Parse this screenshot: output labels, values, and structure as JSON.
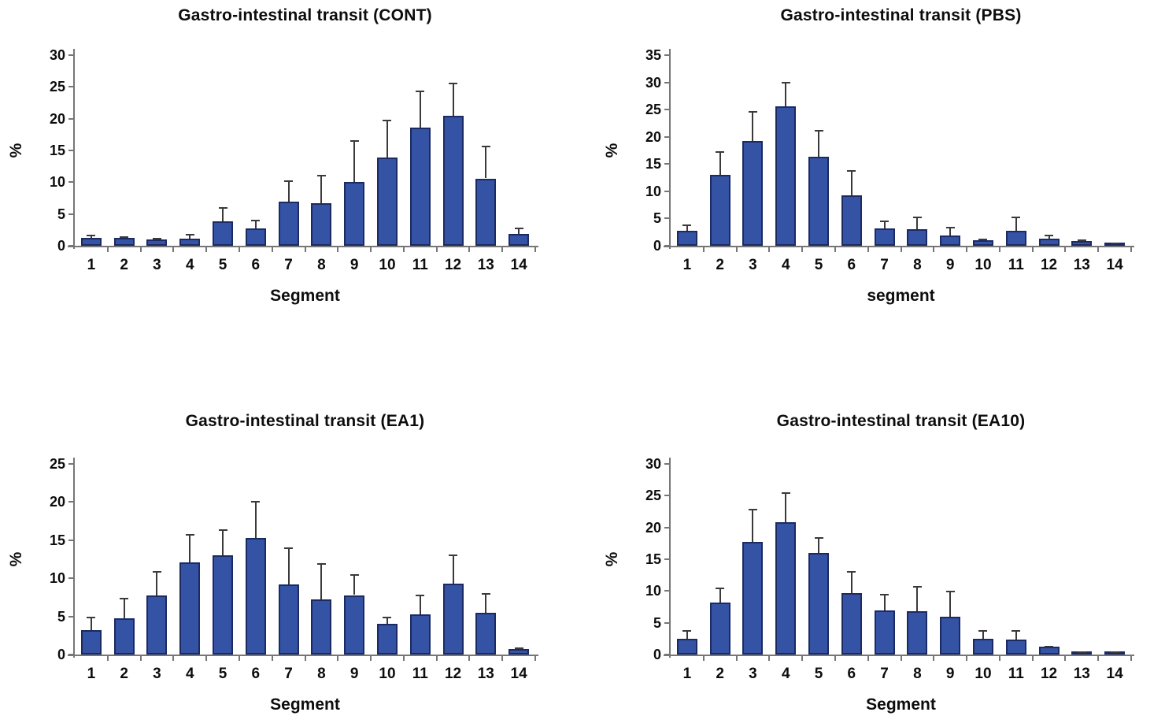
{
  "figure": {
    "background": "#ffffff",
    "layout": "2x2-grid-of-bar-charts"
  },
  "colors": {
    "bar_fill": "#3453a5",
    "bar_border": "#1c2a63",
    "axis": "#767676",
    "error_bar": "#3a3a3a",
    "text": "#0d0d0d"
  },
  "chart_data": [
    {
      "id": "cont",
      "type": "bar",
      "title": "Gastro-intestinal transit (CONT)",
      "xlabel": "Segment",
      "ylabel": "%",
      "ylim": [
        0,
        30
      ],
      "yticks": [
        0,
        5,
        10,
        15,
        20,
        25,
        30
      ],
      "grid": false,
      "legend": "none",
      "categories": [
        "1",
        "2",
        "3",
        "4",
        "5",
        "6",
        "7",
        "8",
        "9",
        "10",
        "11",
        "12",
        "13",
        "14"
      ],
      "values": [
        1.3,
        1.3,
        1.0,
        1.1,
        3.9,
        2.7,
        6.9,
        6.7,
        10.1,
        13.9,
        18.6,
        20.5,
        10.6,
        1.8
      ],
      "errors": [
        0.4,
        0.2,
        0.2,
        0.8,
        2.2,
        1.4,
        3.4,
        4.4,
        6.5,
        5.9,
        5.8,
        5.2,
        5.1,
        1.0
      ]
    },
    {
      "id": "pbs",
      "type": "bar",
      "title": "Gastro-intestinal transit (PBS)",
      "xlabel": "segment",
      "ylabel": "%",
      "ylim": [
        0,
        35
      ],
      "yticks": [
        0,
        5,
        10,
        15,
        20,
        25,
        30,
        35
      ],
      "grid": false,
      "legend": "none",
      "categories": [
        "1",
        "2",
        "3",
        "4",
        "5",
        "6",
        "7",
        "8",
        "9",
        "10",
        "11",
        "12",
        "13",
        "14"
      ],
      "values": [
        2.8,
        13.0,
        19.2,
        25.6,
        16.3,
        9.2,
        3.2,
        3.0,
        1.9,
        1.0,
        2.8,
        1.3,
        0.8,
        0.4
      ],
      "errors": [
        1.1,
        4.4,
        5.5,
        4.5,
        4.9,
        4.7,
        1.5,
        2.4,
        1.5,
        0.3,
        2.6,
        0.7,
        0.4,
        0.1
      ]
    },
    {
      "id": "ea1",
      "type": "bar",
      "title": "Gastro-intestinal transit (EA1)",
      "xlabel": "Segment",
      "ylabel": "%",
      "ylim": [
        0,
        25
      ],
      "yticks": [
        0,
        5,
        10,
        15,
        20,
        25
      ],
      "grid": false,
      "legend": "none",
      "categories": [
        "1",
        "2",
        "3",
        "4",
        "5",
        "6",
        "7",
        "8",
        "9",
        "10",
        "11",
        "12",
        "13",
        "14"
      ],
      "values": [
        3.2,
        4.8,
        7.7,
        12.1,
        13.0,
        15.3,
        9.2,
        7.2,
        7.8,
        4.0,
        5.3,
        9.3,
        5.5,
        0.7
      ],
      "errors": [
        1.8,
        2.6,
        3.3,
        3.7,
        3.4,
        4.8,
        4.9,
        4.8,
        2.7,
        1.0,
        2.5,
        3.8,
        2.6,
        0.2
      ]
    },
    {
      "id": "ea10",
      "type": "bar",
      "title": "Gastro-intestinal transit (EA10)",
      "xlabel": "Segment",
      "ylabel": "%",
      "ylim": [
        0,
        30
      ],
      "yticks": [
        0,
        5,
        10,
        15,
        20,
        25,
        30
      ],
      "grid": false,
      "legend": "none",
      "categories": [
        "1",
        "2",
        "3",
        "4",
        "5",
        "6",
        "7",
        "8",
        "9",
        "10",
        "11",
        "12",
        "13",
        "14"
      ],
      "values": [
        2.5,
        8.2,
        17.7,
        20.8,
        16.0,
        9.7,
        7.0,
        6.8,
        6.0,
        2.5,
        2.3,
        1.2,
        0.4,
        0.2
      ],
      "errors": [
        1.3,
        2.3,
        5.2,
        4.7,
        2.5,
        3.4,
        2.5,
        4.0,
        4.0,
        1.3,
        1.6,
        0.2,
        0.1,
        0.1
      ]
    }
  ]
}
